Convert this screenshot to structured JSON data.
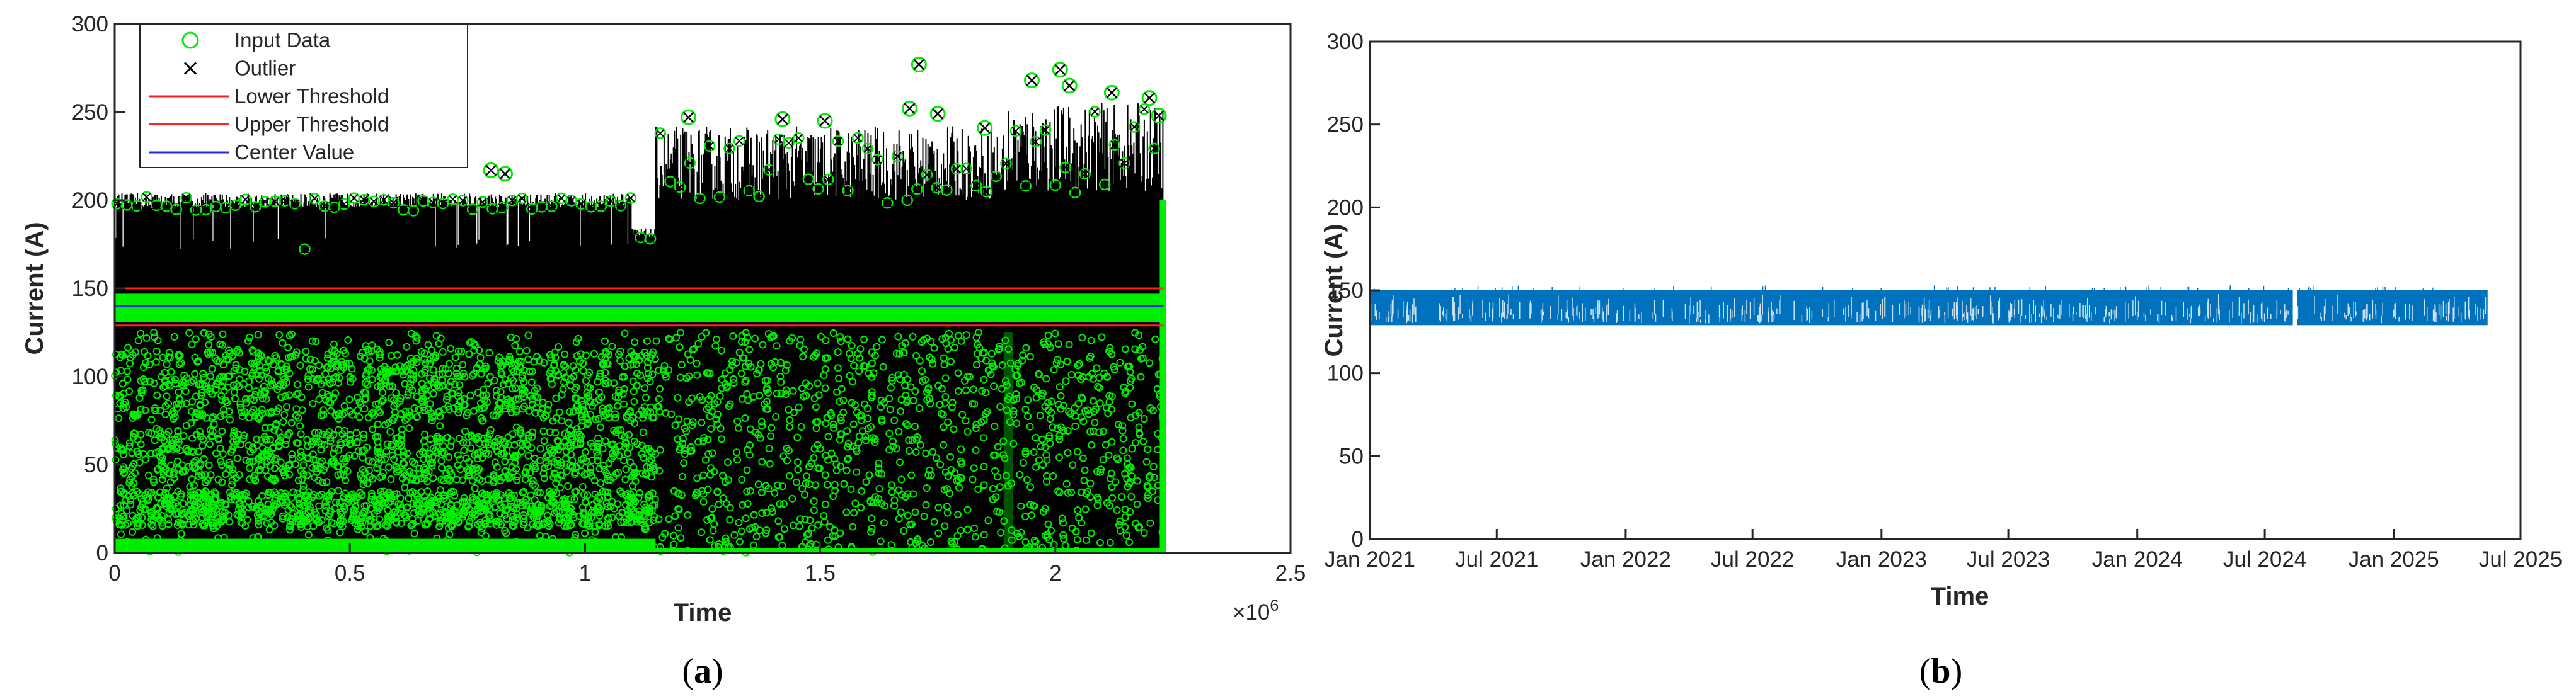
{
  "chart_data": [
    {
      "type": "scatter",
      "panel_label": {
        "open": "(",
        "letter": "a",
        "close": ")"
      },
      "xlabel": "Time",
      "ylabel": "Current (A)",
      "x_exponent_label": "×10",
      "x_exponent_power": "6",
      "xlim": [
        0,
        2500000
      ],
      "ylim": [
        0,
        300
      ],
      "x_ticks": [
        0,
        500000,
        1000000,
        1500000,
        2000000,
        2500000
      ],
      "x_tick_labels": [
        "0",
        "0.5",
        "1",
        "1.5",
        "2",
        "2.5"
      ],
      "y_ticks": [
        0,
        50,
        100,
        150,
        200,
        250,
        300
      ],
      "y_tick_labels": [
        "0",
        "50",
        "100",
        "150",
        "200",
        "250",
        "300"
      ],
      "grid": false,
      "legend_position": "top-left",
      "series": [
        {
          "name": "Input Data",
          "marker": "circle",
          "color": "#00ee00",
          "x_range": [
            0,
            2230000
          ],
          "y_range": [
            0,
            277
          ]
        },
        {
          "name": "Outlier",
          "marker": "x",
          "color": "#000000",
          "x_range": [
            0,
            2230000
          ],
          "y_range": [
            0,
            277
          ]
        },
        {
          "name": "Lower Threshold",
          "line": "solid",
          "color": "#ff2020",
          "value": 129
        },
        {
          "name": "Upper Threshold",
          "line": "solid",
          "color": "#ff2020",
          "value": 150
        },
        {
          "name": "Center Value",
          "line": "solid",
          "color": "#2a2ae0",
          "value": 140
        }
      ],
      "notable_outliers": [
        {
          "x": 800000,
          "y": 217
        },
        {
          "x": 830000,
          "y": 215
        },
        {
          "x": 1220000,
          "y": 247
        },
        {
          "x": 1420000,
          "y": 246
        },
        {
          "x": 1710000,
          "y": 277
        },
        {
          "x": 1690000,
          "y": 252
        },
        {
          "x": 1750000,
          "y": 249
        },
        {
          "x": 1850000,
          "y": 241
        },
        {
          "x": 1950000,
          "y": 268
        },
        {
          "x": 2010000,
          "y": 274
        },
        {
          "x": 2030000,
          "y": 265
        },
        {
          "x": 2120000,
          "y": 261
        },
        {
          "x": 2200000,
          "y": 258
        },
        {
          "x": 2220000,
          "y": 248
        },
        {
          "x": 1510000,
          "y": 245
        }
      ]
    },
    {
      "type": "area",
      "panel_label": {
        "open": "(",
        "letter": "b",
        "close": ")"
      },
      "xlabel": "Time",
      "ylabel": "Current (A)",
      "xlim": [
        "2021-01-01",
        "2025-07-01"
      ],
      "ylim": [
        0,
        300
      ],
      "x_tick_labels": [
        "Jan 2021",
        "Jul 2021",
        "Jan 2022",
        "Jul 2022",
        "Jan 2023",
        "Jul 2023",
        "Jan 2024",
        "Jul 2024",
        "Jan 2025",
        "Jul 2025"
      ],
      "y_ticks": [
        0,
        50,
        100,
        150,
        200,
        250,
        300
      ],
      "y_tick_labels": [
        "0",
        "50",
        "100",
        "150",
        "200",
        "250",
        "300"
      ],
      "grid": false,
      "series": [
        {
          "color": "#0072bd",
          "x_start": "2021-01-01",
          "x_end": "2025-05-15",
          "y_low": 129,
          "y_high": 150,
          "gaps": [
            "2024-08-10"
          ]
        }
      ]
    }
  ]
}
